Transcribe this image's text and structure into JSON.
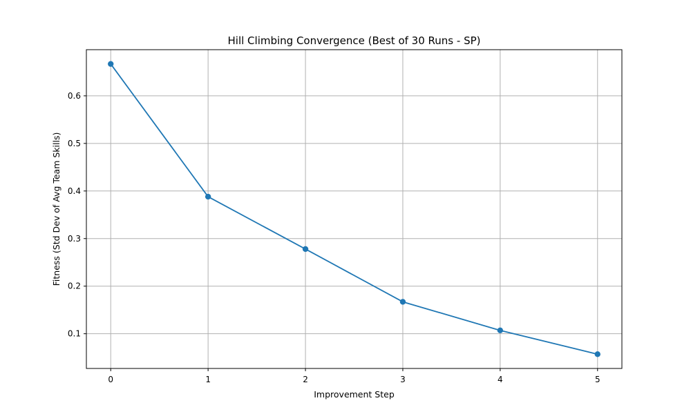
{
  "chart_data": {
    "type": "line",
    "title": "Hill Climbing Convergence (Best of 30 Runs - SP)",
    "xlabel": "Improvement Step",
    "ylabel": "Fitness (Std Dev of Avg Team Skills)",
    "x": [
      0,
      1,
      2,
      3,
      4,
      5
    ],
    "x_tick_labels": [
      "0",
      "1",
      "2",
      "3",
      "4",
      "5"
    ],
    "y_ticks": [
      0.1,
      0.2,
      0.3,
      0.4,
      0.5,
      0.6
    ],
    "y_tick_labels": [
      "0.1",
      "0.2",
      "0.3",
      "0.4",
      "0.5",
      "0.6"
    ],
    "xlim": [
      -0.25,
      5.25
    ],
    "ylim": [
      0.027,
      0.697
    ],
    "grid": true,
    "series": [
      {
        "values": [
          0.667,
          0.388,
          0.278,
          0.167,
          0.107,
          0.057
        ],
        "color": "#1f77b4",
        "marker": "circle"
      }
    ]
  }
}
